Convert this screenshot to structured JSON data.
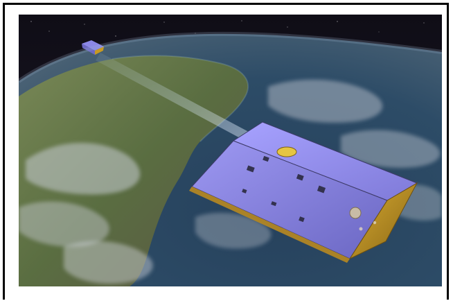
{
  "image": {
    "subject_icons": [
      "earth-globe",
      "satellite-lead",
      "satellite-trail",
      "laser-link-beam"
    ],
    "colors": {
      "space": "#15131c",
      "ocean": "#2f4a63",
      "land": "#5d6f3f",
      "cloud": "#c9ced6",
      "panel": "#8b87e6",
      "foil": "#c89a22"
    }
  }
}
